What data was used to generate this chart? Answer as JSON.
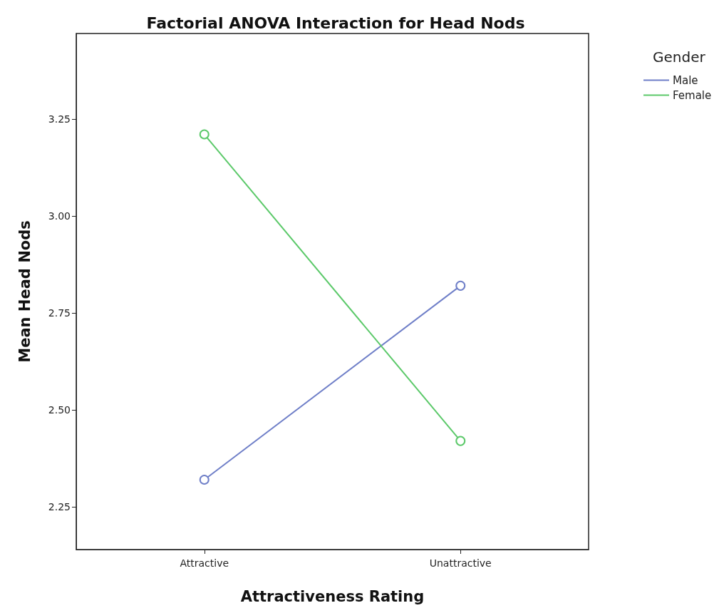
{
  "chart_data": {
    "type": "line",
    "title": "Factorial ANOVA Interaction for Head Nods",
    "xlabel": "Attractiveness Rating",
    "ylabel": "Mean Head Nods",
    "legend_title": "Gender",
    "categories": [
      "Attractive",
      "Unattractive"
    ],
    "series": [
      {
        "name": "Male",
        "color": "#6f7fc8",
        "values": [
          2.32,
          2.82
        ]
      },
      {
        "name": "Female",
        "color": "#5cc96a",
        "values": [
          3.21,
          2.42
        ]
      }
    ],
    "ylim": [
      2.14,
      3.47
    ],
    "yticks": [
      2.25,
      {
        "value": 2.5,
        "label": "2.50"
      },
      2.75,
      {
        "value": 3,
        "label": "3.00"
      },
      3.25
    ],
    "grid": false,
    "legend": "top right",
    "marker": "circle",
    "line_style": "solid"
  }
}
